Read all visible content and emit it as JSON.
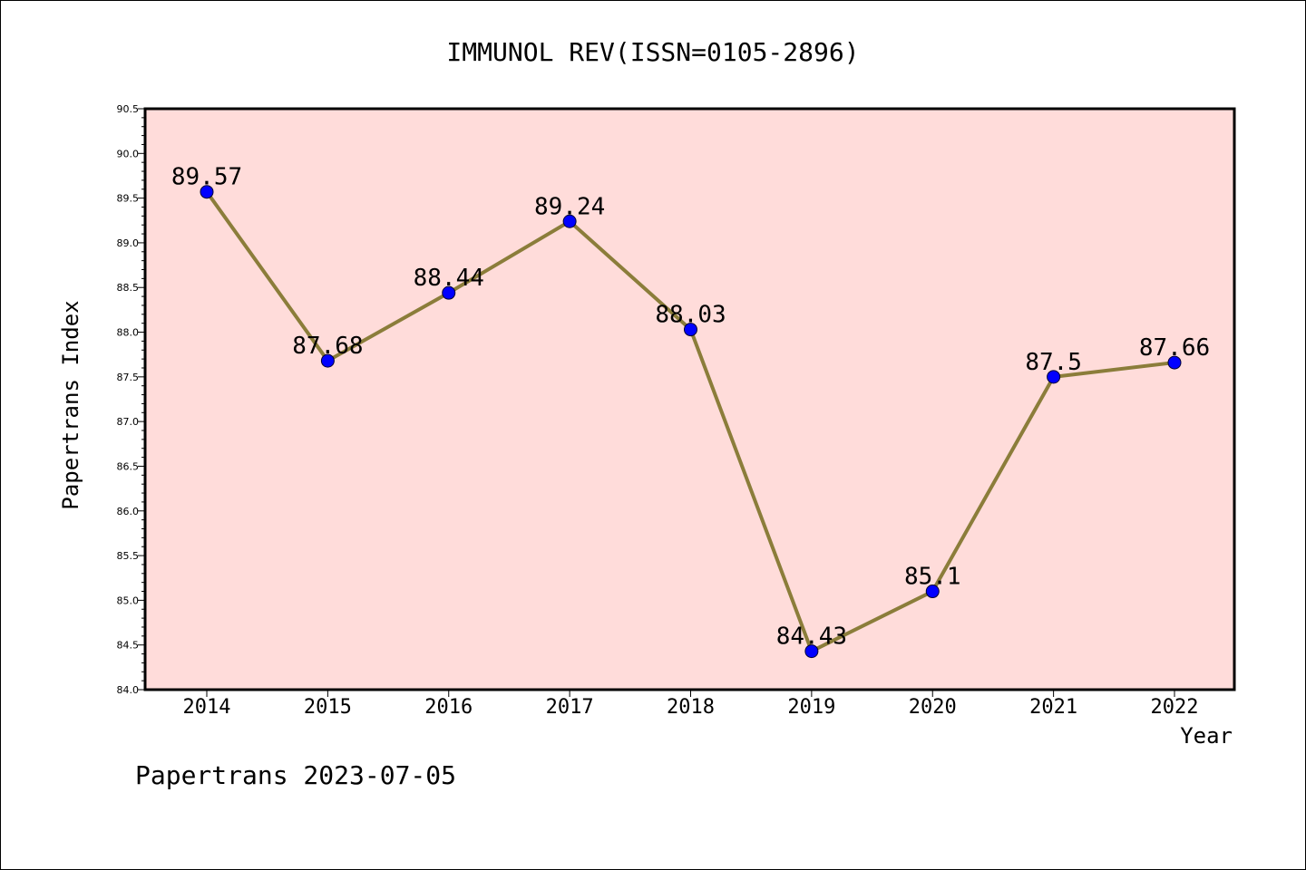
{
  "chart_data": {
    "type": "line",
    "title": "IMMUNOL REV(ISSN=0105-2896)",
    "xlabel": "Year",
    "ylabel": "Papertrans Index",
    "categories": [
      "2014",
      "2015",
      "2016",
      "2017",
      "2018",
      "2019",
      "2020",
      "2021",
      "2022"
    ],
    "series": [
      {
        "values": [
          89.57,
          87.68,
          88.44,
          89.24,
          88.03,
          84.43,
          85.1,
          87.5,
          87.66
        ],
        "labels": [
          "89.57",
          "87.68",
          "88.44",
          "89.24",
          "88.03",
          "84.43",
          "85.1",
          "87.5",
          "87.66"
        ]
      }
    ],
    "ylim": [
      84.0,
      90.5
    ],
    "yticks": [
      "84.0",
      "84.5",
      "85.0",
      "85.5",
      "86.0",
      "86.5",
      "87.0",
      "87.5",
      "88.0",
      "88.5",
      "89.0",
      "89.5",
      "90.0",
      "90.5"
    ],
    "grid": false,
    "colors": {
      "plot_background": "#ffdcda",
      "line": "#8b7d3a",
      "marker": "#0000ff"
    }
  },
  "footer": "Papertrans 2023-07-05"
}
